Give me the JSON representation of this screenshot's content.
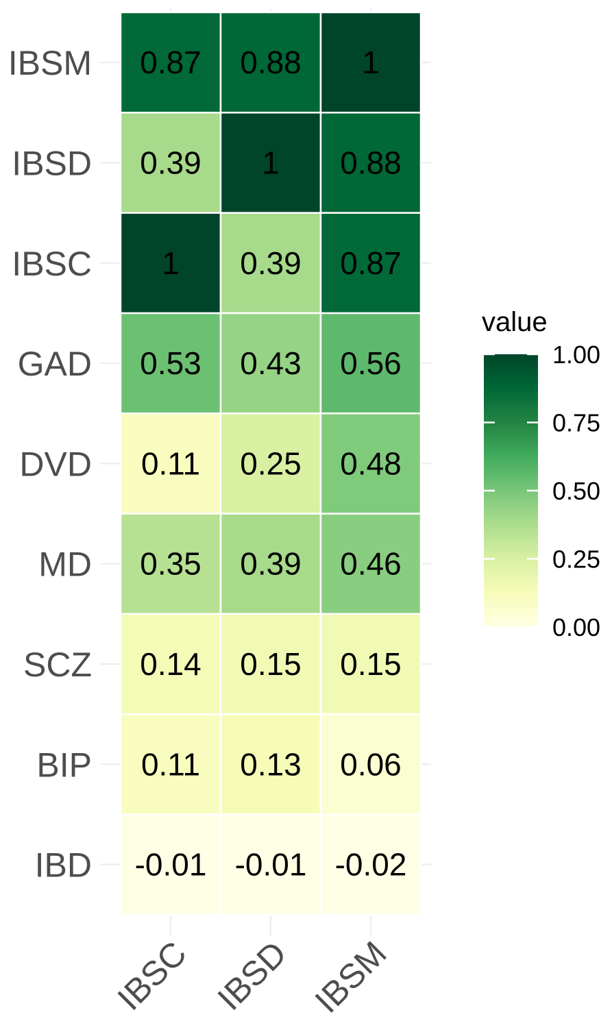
{
  "chart_data": {
    "type": "heatmap",
    "x_categories": [
      "IBSC",
      "IBSD",
      "IBSM"
    ],
    "y_categories": [
      "IBD",
      "BIP",
      "SCZ",
      "MD",
      "DVD",
      "GAD",
      "IBSC",
      "IBSD",
      "IBSM"
    ],
    "values": [
      [
        -0.01,
        -0.01,
        -0.02
      ],
      [
        0.11,
        0.13,
        0.06
      ],
      [
        0.14,
        0.15,
        0.15
      ],
      [
        0.35,
        0.39,
        0.46
      ],
      [
        0.11,
        0.25,
        0.48
      ],
      [
        0.53,
        0.43,
        0.56
      ],
      [
        1,
        0.39,
        0.87
      ],
      [
        0.39,
        1,
        0.88
      ],
      [
        0.87,
        0.88,
        1
      ]
    ],
    "labels": [
      [
        "-0.01",
        "-0.01",
        "-0.02"
      ],
      [
        "0.11",
        "0.13",
        "0.06"
      ],
      [
        "0.14",
        "0.15",
        "0.15"
      ],
      [
        "0.35",
        "0.39",
        "0.46"
      ],
      [
        "0.11",
        "0.25",
        "0.48"
      ],
      [
        "0.53",
        "0.43",
        "0.56"
      ],
      [
        "1",
        "0.39",
        "0.87"
      ],
      [
        "0.39",
        "1",
        "0.88"
      ],
      [
        "0.87",
        "0.88",
        "1"
      ]
    ],
    "legend": {
      "title": "value",
      "ticks": [
        "1.00",
        "0.75",
        "0.50",
        "0.25",
        "0.00"
      ],
      "tick_values": [
        1.0,
        0.75,
        0.5,
        0.25,
        0.0
      ],
      "range": [
        0,
        1
      ],
      "position": "right"
    },
    "colorscale": [
      "#ffffe5",
      "#f7fcb9",
      "#d9f0a3",
      "#addd8e",
      "#78c679",
      "#41ab5d",
      "#238443",
      "#006837",
      "#004529"
    ],
    "grid": true
  }
}
